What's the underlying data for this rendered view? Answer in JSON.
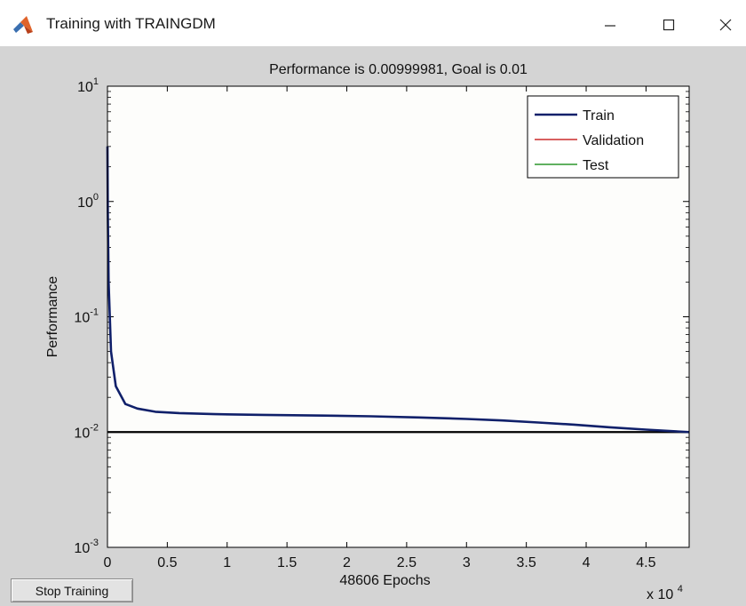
{
  "window": {
    "title": "Training with TRAINGDM",
    "controls": {
      "minimize": "—",
      "maximize": "☐",
      "close": "✕"
    }
  },
  "stop_button": {
    "label": "Stop Training"
  },
  "chart_data": {
    "type": "line",
    "title": "Performance is 0.00999981, Goal is 0.01",
    "xlabel": "48606 Epochs",
    "ylabel": "Performance",
    "x_multiplier": "x 10",
    "x_multiplier_exp": "4",
    "xlim": [
      0,
      48606
    ],
    "ylim": [
      0.001,
      10
    ],
    "yscale": "log",
    "x_ticks": [
      {
        "value": 0,
        "label": "0"
      },
      {
        "value": 5000,
        "label": "0.5"
      },
      {
        "value": 10000,
        "label": "1"
      },
      {
        "value": 15000,
        "label": "1.5"
      },
      {
        "value": 20000,
        "label": "2"
      },
      {
        "value": 25000,
        "label": "2.5"
      },
      {
        "value": 30000,
        "label": "3"
      },
      {
        "value": 35000,
        "label": "3.5"
      },
      {
        "value": 40000,
        "label": "4"
      },
      {
        "value": 45000,
        "label": "4.5"
      }
    ],
    "y_ticks": [
      {
        "value": 0.001,
        "base": "10",
        "exp": "-3"
      },
      {
        "value": 0.01,
        "base": "10",
        "exp": "-2"
      },
      {
        "value": 0.1,
        "base": "10",
        "exp": "-1"
      },
      {
        "value": 1,
        "base": "10",
        "exp": "0"
      },
      {
        "value": 10,
        "base": "10",
        "exp": "1"
      }
    ],
    "goal": 0.01,
    "legend_position": "top-right",
    "series": [
      {
        "name": "Train",
        "color": "#10206a",
        "x": [
          0,
          30,
          100,
          300,
          700,
          1500,
          2500,
          4000,
          6000,
          9000,
          13000,
          18000,
          22000,
          26000,
          30000,
          33000,
          36000,
          39000,
          42000,
          45000,
          48606
        ],
        "y": [
          3.0,
          0.8,
          0.2,
          0.05,
          0.025,
          0.0175,
          0.016,
          0.015,
          0.0146,
          0.0143,
          0.0141,
          0.0139,
          0.0137,
          0.0134,
          0.013,
          0.0126,
          0.0121,
          0.0116,
          0.011,
          0.0105,
          0.0099998
        ]
      },
      {
        "name": "Validation",
        "color": "#c00000",
        "x": [],
        "y": []
      },
      {
        "name": "Test",
        "color": "#008000",
        "x": [],
        "y": []
      }
    ],
    "goal_color": "#000000"
  }
}
